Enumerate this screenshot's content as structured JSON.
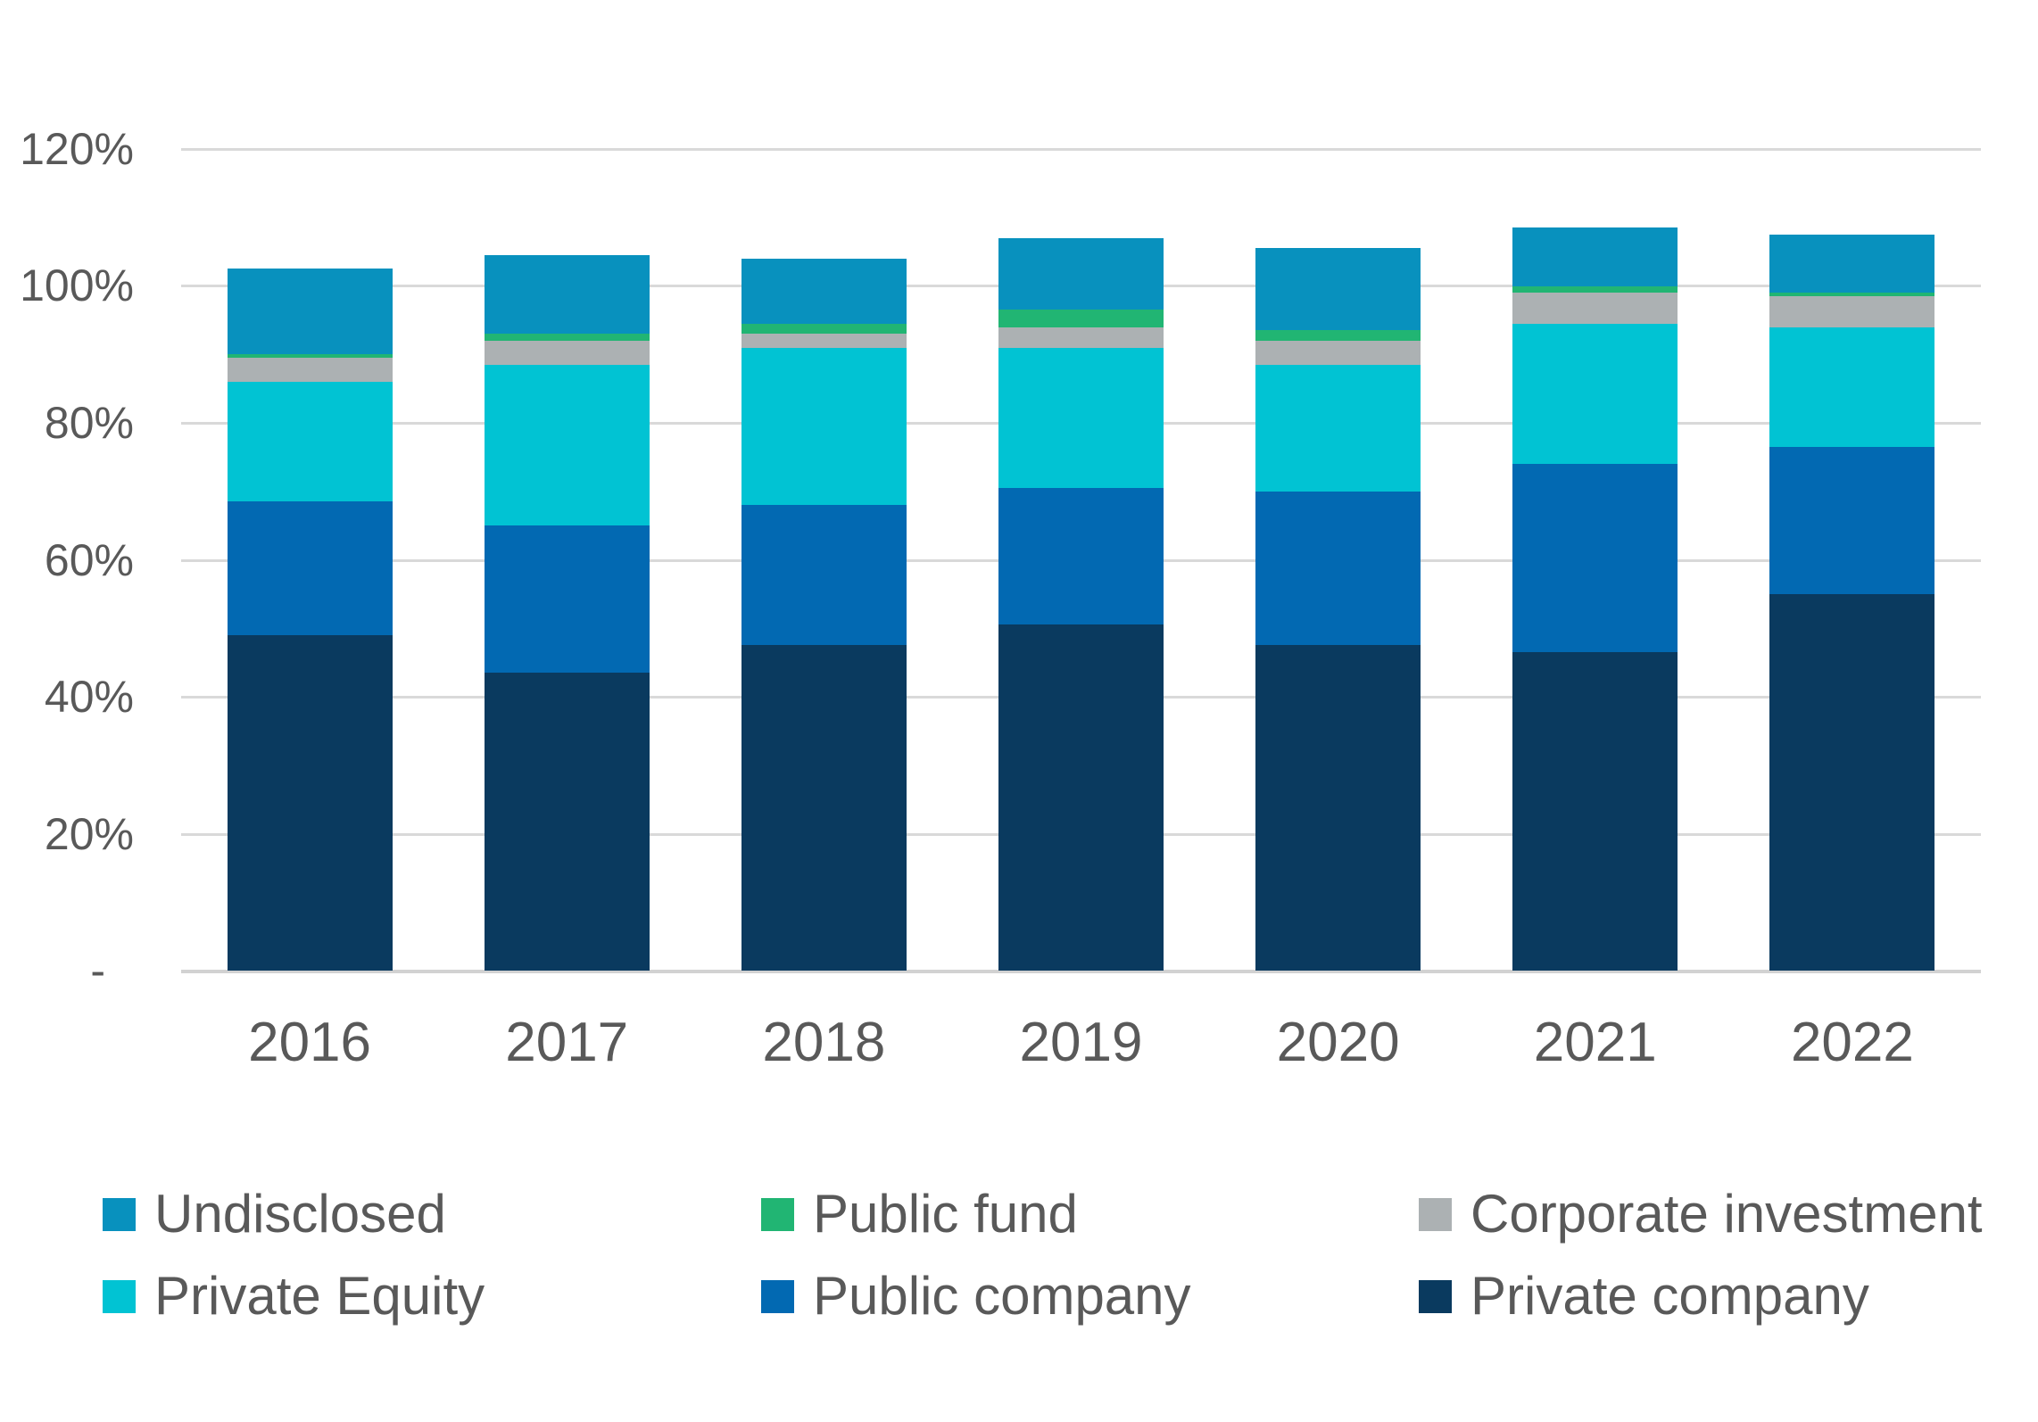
{
  "chart_data": {
    "type": "bar",
    "stacked": true,
    "title": "",
    "xlabel": "",
    "ylabel": "",
    "ylim": [
      0,
      120
    ],
    "grid": true,
    "gridline_values": [
      0,
      20,
      40,
      60,
      80,
      100,
      120
    ],
    "y_tick_labels": [
      "-",
      "20%",
      "40%",
      "60%",
      "80%",
      "100%",
      "120%"
    ],
    "categories": [
      "2016",
      "2017",
      "2018",
      "2019",
      "2020",
      "2021",
      "2022"
    ],
    "series": [
      {
        "name": "Private company",
        "color": "#0a3a5f",
        "values": [
          49.0,
          43.5,
          47.5,
          50.5,
          47.5,
          46.5,
          55.0
        ]
      },
      {
        "name": "Public company",
        "color": "#0269b2",
        "values": [
          19.5,
          21.5,
          20.5,
          20.0,
          22.5,
          27.5,
          21.5
        ]
      },
      {
        "name": "Private Equity",
        "color": "#01c3d3",
        "values": [
          17.5,
          23.5,
          23.0,
          20.5,
          18.5,
          20.5,
          17.5
        ]
      },
      {
        "name": "Corporate investment",
        "color": "#acb1b3",
        "values": [
          3.5,
          3.5,
          2.0,
          3.0,
          3.5,
          4.5,
          4.5
        ]
      },
      {
        "name": "Public fund",
        "color": "#21b573",
        "values": [
          0.5,
          1.0,
          1.5,
          2.5,
          1.5,
          1.0,
          0.5
        ]
      },
      {
        "name": "Undisclosed",
        "color": "#0891be",
        "values": [
          12.5,
          11.5,
          9.5,
          10.5,
          12.0,
          8.5,
          8.5
        ]
      }
    ],
    "bar_totals": [
      102.5,
      104.5,
      104.0,
      107.0,
      105.5,
      108.5,
      107.5
    ],
    "legend_position": "bottom"
  },
  "legend": {
    "items": [
      {
        "key": "undisclosed",
        "label": "Undisclosed",
        "color": "#0891be",
        "row": 0,
        "col": 0
      },
      {
        "key": "public-fund",
        "label": "Public fund",
        "color": "#21b573",
        "row": 0,
        "col": 1
      },
      {
        "key": "corporate-investment",
        "label": "Corporate investment",
        "color": "#acb1b3",
        "row": 0,
        "col": 2
      },
      {
        "key": "private-equity",
        "label": "Private Equity",
        "color": "#01c3d3",
        "row": 1,
        "col": 0
      },
      {
        "key": "public-company",
        "label": "Public company",
        "color": "#0269b2",
        "row": 1,
        "col": 1
      },
      {
        "key": "private-company",
        "label": "Private company",
        "color": "#0a3a5f",
        "row": 1,
        "col": 2
      }
    ]
  },
  "style": {
    "text_color": "#595959",
    "gridline_color": "#d9d9d9",
    "background": "#ffffff"
  }
}
